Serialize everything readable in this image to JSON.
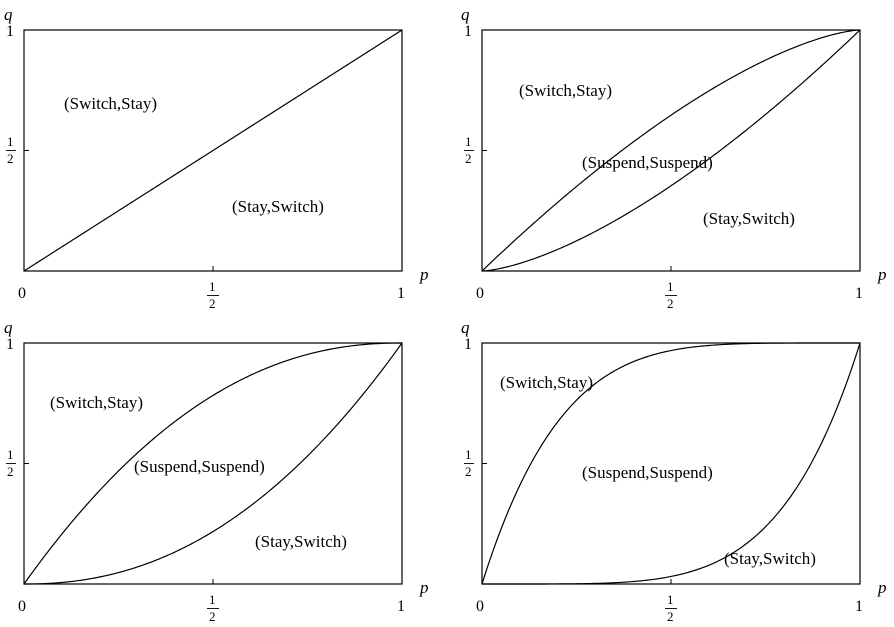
{
  "axes": {
    "x_var": "p",
    "y_var": "q",
    "x_ticks": {
      "zero": "0",
      "half_num": "1",
      "half_den": "2",
      "one": "1"
    },
    "y_ticks": {
      "one": "1",
      "half_num": "1",
      "half_den": "2"
    },
    "xlim": [
      0,
      1
    ],
    "ylim": [
      0,
      1
    ]
  },
  "panels": [
    {
      "id": "top-left",
      "regions": {
        "upper": "(Switch,Stay)",
        "lower": "(Stay,Switch)"
      },
      "curves": [
        {
          "shape": "linear"
        }
      ]
    },
    {
      "id": "top-right",
      "regions": {
        "upper": "(Switch,Stay)",
        "middle": "(Suspend,Suspend)",
        "lower": "(Stay,Switch)"
      },
      "curves": [
        {
          "shape": "concave",
          "exponent": 1.5
        },
        {
          "shape": "convex",
          "exponent": 1.5
        }
      ]
    },
    {
      "id": "bottom-left",
      "regions": {
        "upper": "(Switch,Stay)",
        "middle": "(Suspend,Suspend)",
        "lower": "(Stay,Switch)"
      },
      "curves": [
        {
          "shape": "concave",
          "exponent": 2.2
        },
        {
          "shape": "convex",
          "exponent": 2.2
        }
      ]
    },
    {
      "id": "bottom-right",
      "regions": {
        "upper": "(Switch,Stay)",
        "middle": "(Suspend,Suspend)",
        "lower": "(Stay,Switch)"
      },
      "curves": [
        {
          "shape": "concave",
          "exponent": 5
        },
        {
          "shape": "convex",
          "exponent": 5
        }
      ]
    }
  ]
}
